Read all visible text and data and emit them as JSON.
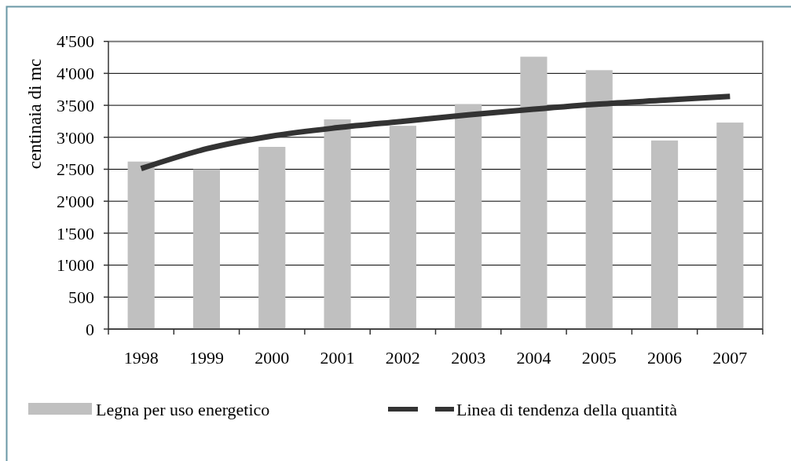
{
  "chart_data": {
    "type": "bar",
    "ylabel": "centinaia di mc",
    "categories": [
      "1998",
      "1999",
      "2000",
      "2001",
      "2002",
      "2003",
      "2004",
      "2005",
      "2006",
      "2007"
    ],
    "series": [
      {
        "name": "Legna per uso energetico",
        "color": "#c0c0c0",
        "values": [
          2620,
          2500,
          2850,
          3280,
          3180,
          3520,
          4260,
          4050,
          2950,
          3230
        ]
      },
      {
        "name": "Linea di tendenza della quantità",
        "type": "line",
        "color": "#333333",
        "values": [
          2510,
          2820,
          3020,
          3150,
          3250,
          3350,
          3440,
          3520,
          3580,
          3640
        ]
      }
    ],
    "ylim": [
      0,
      4500
    ],
    "yticks": [
      0,
      500,
      {
        "value": 1000,
        "label": "1'000"
      },
      {
        "value": 1500,
        "label": "1'500"
      },
      {
        "value": 2000,
        "label": "2'000"
      },
      {
        "value": 2500,
        "label": "2'500"
      },
      {
        "value": 3000,
        "label": "3'000"
      },
      {
        "value": 3500,
        "label": "3'500"
      },
      {
        "value": 4000,
        "label": "4'000"
      },
      {
        "value": 4500,
        "label": "4'500"
      }
    ],
    "grid": "y",
    "legend": "bottom"
  }
}
